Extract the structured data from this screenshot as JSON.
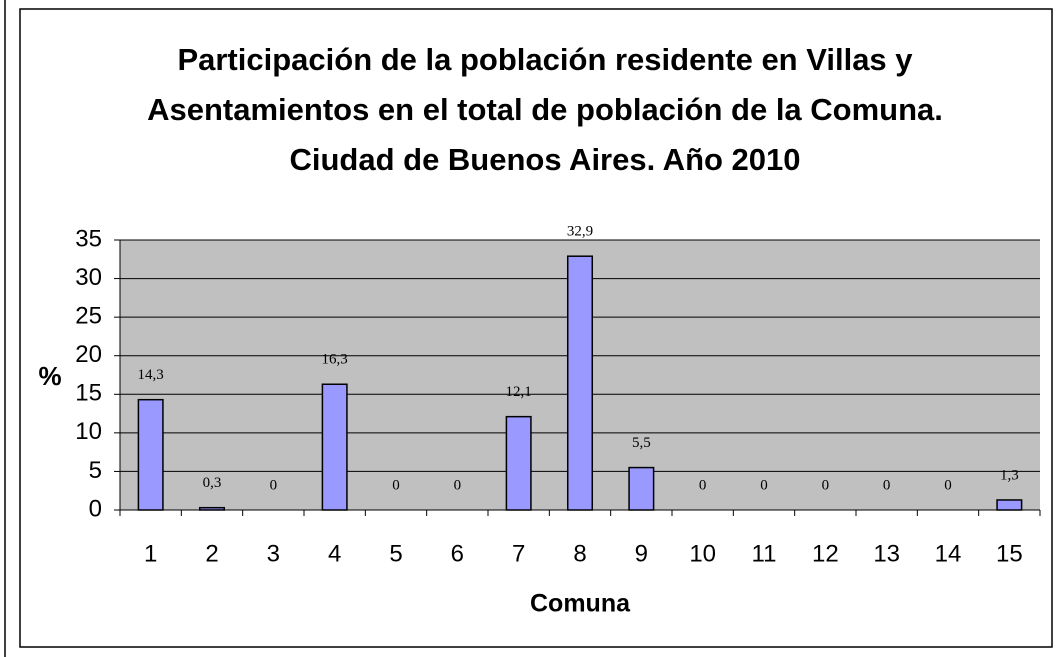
{
  "chart_data": {
    "type": "bar",
    "title": "Participación de la población residente en Villas y Asentamientos en el total de población de la Comuna. Ciudad de Buenos Aires. Año 2010",
    "x_label": "Comuna",
    "y_label": "%",
    "categories": [
      "1",
      "2",
      "3",
      "4",
      "5",
      "6",
      "7",
      "8",
      "9",
      "10",
      "11",
      "12",
      "13",
      "14",
      "15"
    ],
    "values": [
      14.3,
      0.3,
      0,
      16.3,
      0,
      0,
      12.1,
      32.9,
      5.5,
      0,
      0,
      0,
      0,
      0,
      1.3
    ],
    "value_labels": [
      "14,3",
      "0,3",
      "0",
      "16,3",
      "0",
      "0",
      "12,1",
      "32,9",
      "5,5",
      "0",
      "0",
      "0",
      "0",
      "0",
      "1,3"
    ],
    "color": "#9999ff",
    "ylim": [
      0,
      35
    ],
    "yticks": [
      0,
      5,
      10,
      15,
      20,
      25,
      30,
      35
    ],
    "grid": true
  }
}
